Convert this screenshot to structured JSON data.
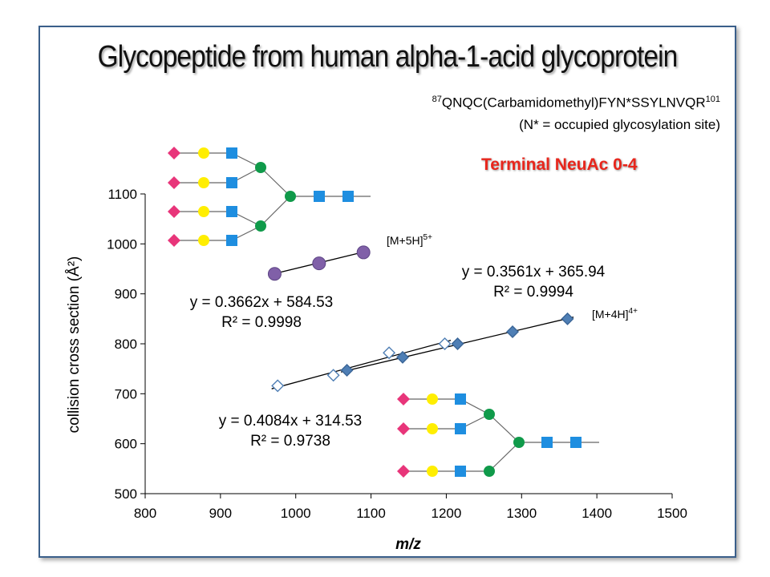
{
  "title": "Glycopeptide from human alpha-1-acid glycoprotein",
  "peptide": {
    "start": "87",
    "sequence": "QNQC(Carbamidomethyl)FYN*SSYLNVQR",
    "end": "101",
    "note": "(N* = occupied glycosylation site)"
  },
  "terminal_label": "Terminal NeuAc 0-4",
  "colors": {
    "neuac": "#e8357a",
    "gal": "#ffee00",
    "glcnac": "#1e8ee0",
    "man": "#109a4a",
    "diamond": "#4f7fb5",
    "purple": "#8060a8"
  },
  "glycan_icons": [
    "neuac-diamond",
    "galactose-circle",
    "glcnac-square",
    "mannose-circle"
  ],
  "chart_data": {
    "type": "scatter",
    "xlabel_italic": "m/z",
    "ylabel": "collision cross section (Å²)",
    "xlim": [
      800,
      1500
    ],
    "ylim": [
      500,
      1100
    ],
    "x_ticks": [
      800,
      900,
      1000,
      1100,
      1200,
      1300,
      1400,
      1500
    ],
    "y_ticks": [
      500,
      600,
      700,
      800,
      900,
      1000,
      1100
    ],
    "grid": false,
    "series": [
      {
        "label": "[M+5H]5+",
        "marker": "circle-purple",
        "points": [
          [
            972,
            940
          ],
          [
            1031,
            961
          ],
          [
            1090,
            983
          ]
        ],
        "fit": {
          "text": "y = 0.3662x + 584.53",
          "r2": "R² = 0.9998"
        }
      },
      {
        "label": "[M+4H]4+",
        "marker": "diamond-filled",
        "points": [
          [
            1068,
            747
          ],
          [
            1142,
            773
          ],
          [
            1215,
            800
          ],
          [
            1288,
            824
          ],
          [
            1361,
            850
          ]
        ],
        "fit": {
          "text": "y = 0.3561x + 365.94",
          "r2": "R² = 0.9994"
        }
      },
      {
        "label": "",
        "marker": "diamond-open",
        "points": [
          [
            976,
            716
          ],
          [
            1050,
            737
          ],
          [
            1124,
            782
          ],
          [
            1198,
            800
          ]
        ],
        "fit": {
          "text": "y = 0.4084x + 314.53",
          "r2": "R² = 0.9738"
        }
      }
    ],
    "ion_labels": [
      {
        "base": "[M+5H]",
        "sup": "5+"
      },
      {
        "base": "[M+4H]",
        "sup": "4+"
      }
    ]
  }
}
